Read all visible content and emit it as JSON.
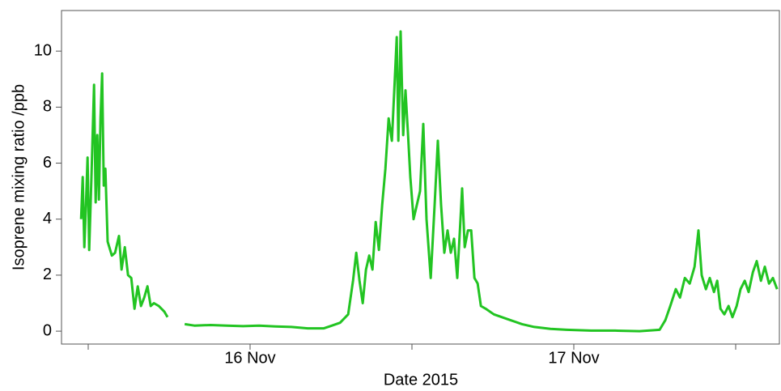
{
  "chart_data": {
    "type": "line",
    "x_label": "Date 2015",
    "y_label": "Isoprene mixing ratio /ppb",
    "color": "#22c422",
    "xlim": [
      15.4175,
      17.635
    ],
    "ylim": [
      -0.46,
      11.45
    ],
    "xticks": [
      {
        "value": 15.5,
        "label": null
      },
      {
        "value": 16,
        "label": "16 Nov"
      },
      {
        "value": 16.5,
        "label": null
      },
      {
        "value": 17,
        "label": "17 Nov"
      },
      {
        "value": 17.5,
        "label": null
      }
    ],
    "yticks": [
      0,
      2,
      4,
      6,
      8,
      10
    ],
    "x": [
      15.478,
      15.483,
      15.488,
      15.493,
      15.498,
      15.503,
      15.51,
      15.518,
      15.523,
      15.528,
      15.533,
      15.538,
      15.543,
      15.548,
      15.553,
      15.56,
      15.573,
      15.583,
      15.595,
      15.603,
      15.613,
      15.623,
      15.633,
      15.643,
      15.653,
      15.663,
      15.673,
      15.683,
      15.693,
      15.703,
      15.718,
      15.735,
      15.745,
      15.77,
      15.798,
      15.828,
      15.878,
      15.928,
      15.978,
      16.028,
      16.078,
      16.128,
      16.178,
      16.228,
      16.253,
      16.278,
      16.303,
      16.318,
      16.328,
      16.338,
      16.348,
      16.358,
      16.368,
      16.378,
      16.388,
      16.398,
      16.408,
      16.418,
      16.428,
      16.438,
      16.445,
      16.453,
      16.458,
      16.465,
      16.473,
      16.48,
      16.488,
      16.495,
      16.505,
      16.515,
      16.525,
      16.535,
      16.545,
      16.558,
      16.57,
      16.58,
      16.59,
      16.6,
      16.61,
      16.62,
      16.63,
      16.64,
      16.65,
      16.655,
      16.663,
      16.673,
      16.683,
      16.693,
      16.703,
      16.713,
      16.728,
      16.753,
      16.778,
      16.803,
      16.84,
      16.878,
      16.928,
      16.978,
      17.053,
      17.128,
      17.203,
      17.265,
      17.283,
      17.298,
      17.315,
      17.328,
      17.343,
      17.358,
      17.373,
      17.385,
      17.395,
      17.408,
      17.42,
      17.433,
      17.443,
      17.453,
      17.465,
      17.478,
      17.49,
      17.503,
      17.515,
      17.528,
      17.54,
      17.553,
      17.565,
      17.578,
      17.59,
      17.603,
      17.615,
      17.628
    ],
    "values": [
      4.0,
      5.5,
      3.0,
      4.5,
      6.2,
      2.9,
      5.5,
      8.8,
      4.6,
      7.0,
      4.7,
      7.6,
      9.2,
      5.2,
      5.8,
      3.2,
      2.7,
      2.8,
      3.4,
      2.2,
      3.0,
      2.0,
      1.9,
      0.8,
      1.6,
      0.9,
      1.2,
      1.6,
      0.9,
      1.0,
      0.9,
      0.7,
      0.5,
      null,
      0.25,
      0.2,
      0.22,
      0.2,
      0.18,
      0.2,
      0.17,
      0.15,
      0.1,
      0.1,
      0.2,
      0.3,
      0.6,
      1.8,
      2.8,
      1.8,
      1.0,
      2.2,
      2.7,
      2.2,
      3.9,
      2.9,
      4.5,
      5.8,
      7.6,
      6.8,
      8.5,
      10.5,
      6.8,
      10.7,
      7.0,
      8.6,
      7.0,
      5.5,
      4.0,
      4.5,
      5.0,
      7.4,
      4.0,
      1.9,
      4.5,
      6.8,
      4.5,
      2.8,
      3.6,
      2.8,
      3.3,
      1.9,
      4.0,
      5.1,
      3.0,
      3.6,
      3.6,
      1.9,
      1.7,
      0.9,
      0.8,
      0.6,
      0.5,
      0.4,
      0.25,
      0.15,
      0.08,
      0.05,
      0.02,
      0.02,
      0.0,
      0.05,
      0.4,
      0.9,
      1.5,
      1.2,
      1.9,
      1.7,
      2.3,
      3.6,
      2.0,
      1.5,
      1.9,
      1.4,
      1.8,
      0.8,
      0.6,
      0.9,
      0.5,
      0.9,
      1.5,
      1.8,
      1.4,
      2.1,
      2.5,
      1.8,
      2.3,
      1.7,
      1.9,
      1.5
    ]
  }
}
